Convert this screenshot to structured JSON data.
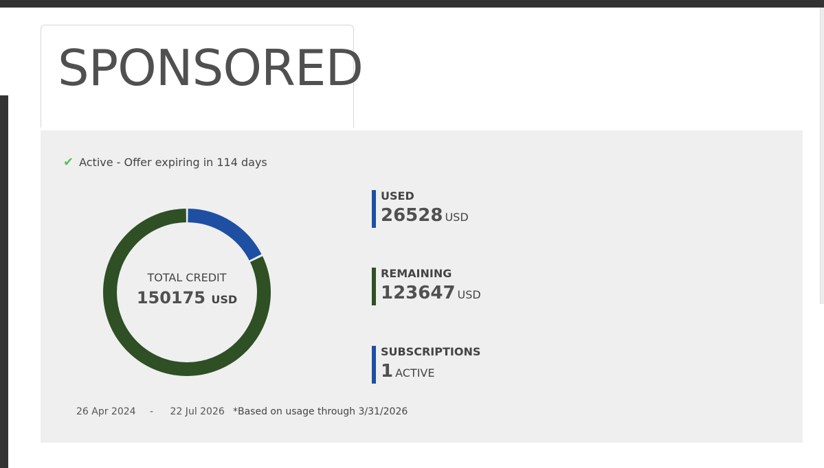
{
  "tab": {
    "title": "SPONSORED"
  },
  "status": {
    "icon": "check-icon",
    "text": "Active - Offer expiring in 114 days",
    "color": "#5cc05c"
  },
  "credit": {
    "label": "TOTAL CREDIT",
    "total": "150175",
    "unit": "USD",
    "used_value": 26528,
    "remaining_value": 123647,
    "used_color": "#1f4fa3",
    "remaining_color": "#2f4f25"
  },
  "stats": {
    "used": {
      "label": "USED",
      "value": "26528",
      "unit": "USD"
    },
    "remaining": {
      "label": "REMAINING",
      "value": "123647",
      "unit": "USD"
    },
    "subscriptions": {
      "label": "SUBSCRIPTIONS",
      "value": "1",
      "unit": "ACTIVE"
    }
  },
  "period": {
    "start": "26 Apr 2024",
    "separator": "-",
    "end": "22 Jul 2026"
  },
  "usage_note": "*Based on usage through 3/31/2026"
}
